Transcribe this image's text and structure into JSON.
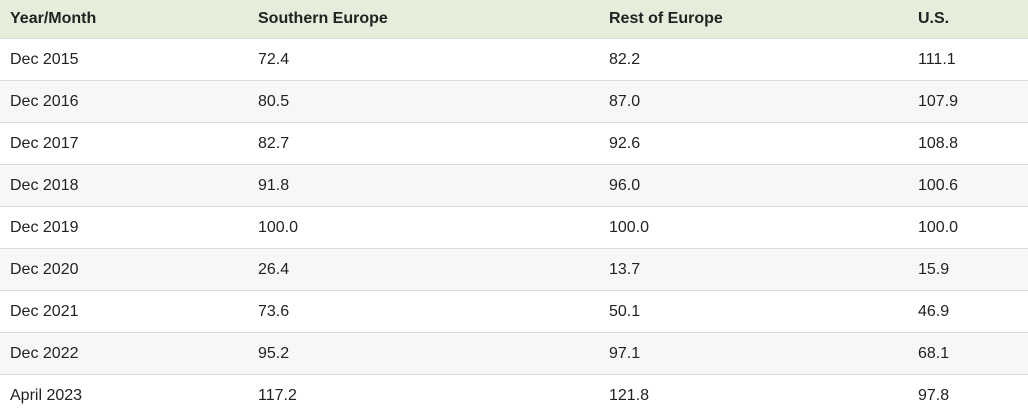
{
  "table": {
    "header": [
      "Year/Month",
      "Southern Europe",
      "Rest of Europe",
      "U.S."
    ],
    "rows": [
      [
        "Dec 2015",
        "72.4",
        "82.2",
        "111.1"
      ],
      [
        "Dec 2016",
        "80.5",
        "87.0",
        "107.9"
      ],
      [
        "Dec 2017",
        "82.7",
        "92.6",
        "108.8"
      ],
      [
        "Dec 2018",
        "91.8",
        "96.0",
        "100.6"
      ],
      [
        "Dec 2019",
        "100.0",
        "100.0",
        "100.0"
      ],
      [
        "Dec 2020",
        "26.4",
        "13.7",
        "15.9"
      ],
      [
        "Dec 2021",
        "73.6",
        "50.1",
        "46.9"
      ],
      [
        "Dec 2022",
        "95.2",
        "97.1",
        "68.1"
      ],
      [
        "April 2023",
        "117.2",
        "121.8",
        "97.8"
      ]
    ]
  }
}
